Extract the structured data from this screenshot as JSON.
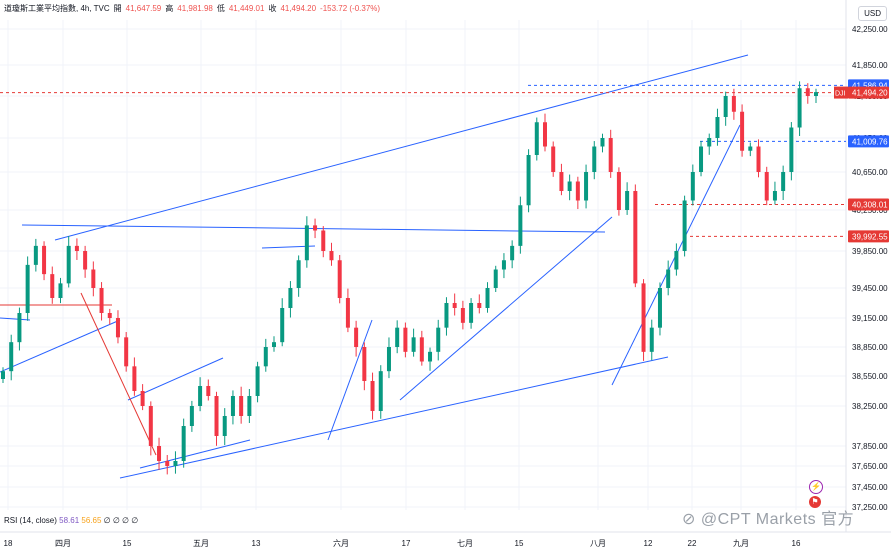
{
  "header": {
    "symbol": "道瓊斯工業平均指數, 4h, TVC",
    "open_label": "開",
    "open": "41,647.59",
    "high_label": "高",
    "high": "41,981.98",
    "low_label": "低",
    "low": "41,449.01",
    "close_label": "收",
    "close": "41,494.20",
    "change": "-153.72 (-0.37%)"
  },
  "currency_button": "USD",
  "rsi": {
    "label": "RSI (14, close)",
    "value1": "58.61",
    "value2": "56.65",
    "extra": "∅ ∅ ∅ ∅"
  },
  "watermark": "CPT Markets 官方",
  "colors": {
    "up": "#089981",
    "down": "#f23645",
    "trendline": "#2962ff",
    "level_red": "#e53935",
    "level_blue": "#2962ff"
  },
  "chart_data": {
    "type": "candlestick",
    "symbol_tag": "DJI",
    "y_ticks": [
      42250,
      41850,
      41450,
      41050,
      40650,
      40250,
      39850,
      39450,
      39150,
      38850,
      38550,
      38250,
      37850,
      37650,
      37450,
      37250
    ],
    "y_tick_labels": [
      "42,250.00",
      "41,850.00",
      "41,450.00",
      "41,050.00",
      "40,650.00",
      "40,250.00",
      "39,850.00",
      "39,450.00",
      "39,150.00",
      "38,850.00",
      "38,550.00",
      "38,250.00",
      "37,850.00",
      "37,650.00",
      "37,450.00",
      "37,250.00"
    ],
    "x_ticks": [
      "18",
      "四月",
      "15",
      "五月",
      "13",
      "六月",
      "17",
      "七月",
      "15",
      "八月",
      "12",
      "22",
      "九月",
      "16"
    ],
    "price_labels": [
      {
        "value": 41586.94,
        "text": "41,586.94",
        "color": "#2962ff"
      },
      {
        "value": 41494.2,
        "text": "41,494.20",
        "color": "#e53935"
      },
      {
        "value": 41009.76,
        "text": "41,009.76",
        "color": "#2962ff"
      },
      {
        "value": 40308.01,
        "text": "40,308.01",
        "color": "#e53935"
      },
      {
        "value": 39992.55,
        "text": "39,992.55",
        "color": "#e53935"
      }
    ],
    "closes": [
      38600,
      38900,
      39200,
      39700,
      39900,
      39600,
      39350,
      39500,
      39900,
      39850,
      39650,
      39450,
      39200,
      39150,
      38950,
      38650,
      38400,
      38250,
      37850,
      37700,
      37650,
      37700,
      38050,
      38250,
      38450,
      38350,
      37950,
      38150,
      38350,
      38150,
      38350,
      38650,
      38850,
      38900,
      39250,
      39450,
      39750,
      40100,
      40050,
      39850,
      39750,
      39350,
      39050,
      38850,
      38500,
      38200,
      38600,
      38850,
      39050,
      38800,
      38950,
      38700,
      38800,
      39050,
      39300,
      39250,
      39100,
      39300,
      39250,
      39450,
      39650,
      39750,
      39900,
      40300,
      40850,
      41200,
      40950,
      40650,
      40450,
      40550,
      40350,
      40650,
      40950,
      41050,
      40650,
      40250,
      40450,
      39500,
      38800,
      39050,
      39450,
      39650,
      39850,
      40350,
      40650,
      40950,
      41050,
      41250,
      41450,
      41300,
      40900,
      40950,
      40650,
      40350,
      40450,
      40650,
      41150,
      41550,
      41450,
      41500
    ],
    "level_lines": [
      41586.94,
      41494.2,
      41009.76,
      40308.01,
      39992.55
    ]
  }
}
